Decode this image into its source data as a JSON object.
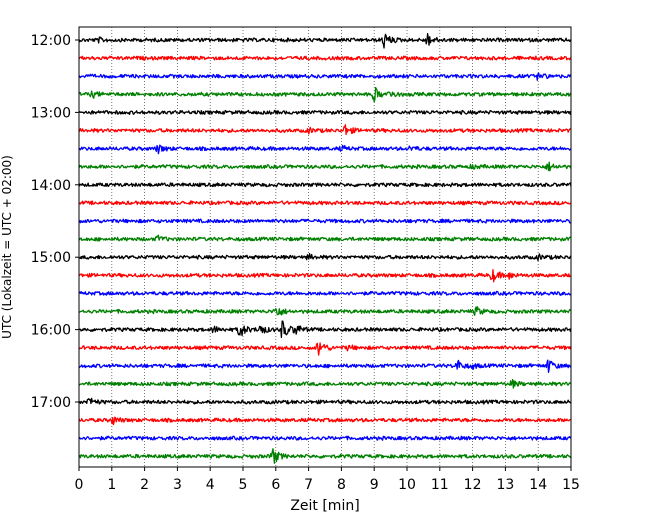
{
  "chart_data": {
    "type": "line",
    "subtype": "seismogram-helicorder",
    "title": "",
    "xlabel": "Zeit  [min]",
    "ylabel": "UTC (Lokalzeit = UTC + 02:00)",
    "xlim": [
      0,
      15
    ],
    "x_ticks": [
      "0",
      "1",
      "2",
      "3",
      "4",
      "5",
      "6",
      "7",
      "8",
      "9",
      "10",
      "11",
      "12",
      "13",
      "14",
      "15"
    ],
    "y_tick_labels": [
      "12:00",
      "13:00",
      "14:00",
      "15:00",
      "16:00",
      "17:00"
    ],
    "trace_interval_min": 15,
    "grid": "vertical-dotted",
    "trace_colors": [
      "#000000",
      "#ff0000",
      "#0000ff",
      "#008000"
    ],
    "traces": [
      {
        "start": "12:00",
        "events": [
          [
            9.3,
            0.55
          ],
          [
            10.6,
            0.5
          ],
          [
            0.6,
            0.12
          ]
        ]
      },
      {
        "start": "12:15",
        "events": []
      },
      {
        "start": "12:30",
        "events": [
          [
            14.0,
            0.25
          ]
        ]
      },
      {
        "start": "12:45",
        "events": [
          [
            9.0,
            0.5
          ],
          [
            9.5,
            0.25
          ],
          [
            0.4,
            0.2
          ]
        ]
      },
      {
        "start": "13:00",
        "events": []
      },
      {
        "start": "13:15",
        "events": [
          [
            8.1,
            0.4
          ],
          [
            7.0,
            0.15
          ]
        ]
      },
      {
        "start": "13:30",
        "events": [
          [
            2.4,
            0.3
          ],
          [
            8.0,
            0.15
          ],
          [
            10.1,
            0.15
          ]
        ]
      },
      {
        "start": "13:45",
        "events": [
          [
            14.3,
            0.3
          ],
          [
            12.0,
            0.12
          ]
        ]
      },
      {
        "start": "14:00",
        "events": []
      },
      {
        "start": "14:15",
        "events": []
      },
      {
        "start": "14:30",
        "events": []
      },
      {
        "start": "14:45",
        "events": [
          [
            2.4,
            0.2
          ]
        ]
      },
      {
        "start": "15:00",
        "events": [
          [
            7.0,
            0.15
          ],
          [
            14.0,
            0.15
          ]
        ]
      },
      {
        "start": "15:15",
        "events": [
          [
            12.6,
            0.45
          ],
          [
            13.1,
            0.2
          ]
        ]
      },
      {
        "start": "15:30",
        "events": []
      },
      {
        "start": "15:45",
        "events": [
          [
            6.0,
            0.45
          ],
          [
            12.1,
            0.3
          ]
        ]
      },
      {
        "start": "16:00",
        "events": [
          [
            4.9,
            0.55
          ],
          [
            5.5,
            0.4
          ],
          [
            6.2,
            0.7
          ],
          [
            6.6,
            0.35
          ],
          [
            4.1,
            0.2
          ]
        ]
      },
      {
        "start": "16:15",
        "events": [
          [
            7.3,
            0.6
          ],
          [
            8.2,
            0.15
          ]
        ]
      },
      {
        "start": "16:30",
        "events": [
          [
            11.5,
            0.45
          ],
          [
            14.3,
            0.45
          ],
          [
            12.0,
            0.15
          ]
        ]
      },
      {
        "start": "16:45",
        "events": [
          [
            13.2,
            0.25
          ]
        ]
      },
      {
        "start": "17:00",
        "events": [
          [
            0.3,
            0.3
          ]
        ]
      },
      {
        "start": "17:15",
        "events": [
          [
            1.0,
            0.3
          ]
        ]
      },
      {
        "start": "17:30",
        "events": []
      },
      {
        "start": "17:45",
        "events": [
          [
            5.9,
            0.6
          ]
        ]
      }
    ]
  }
}
